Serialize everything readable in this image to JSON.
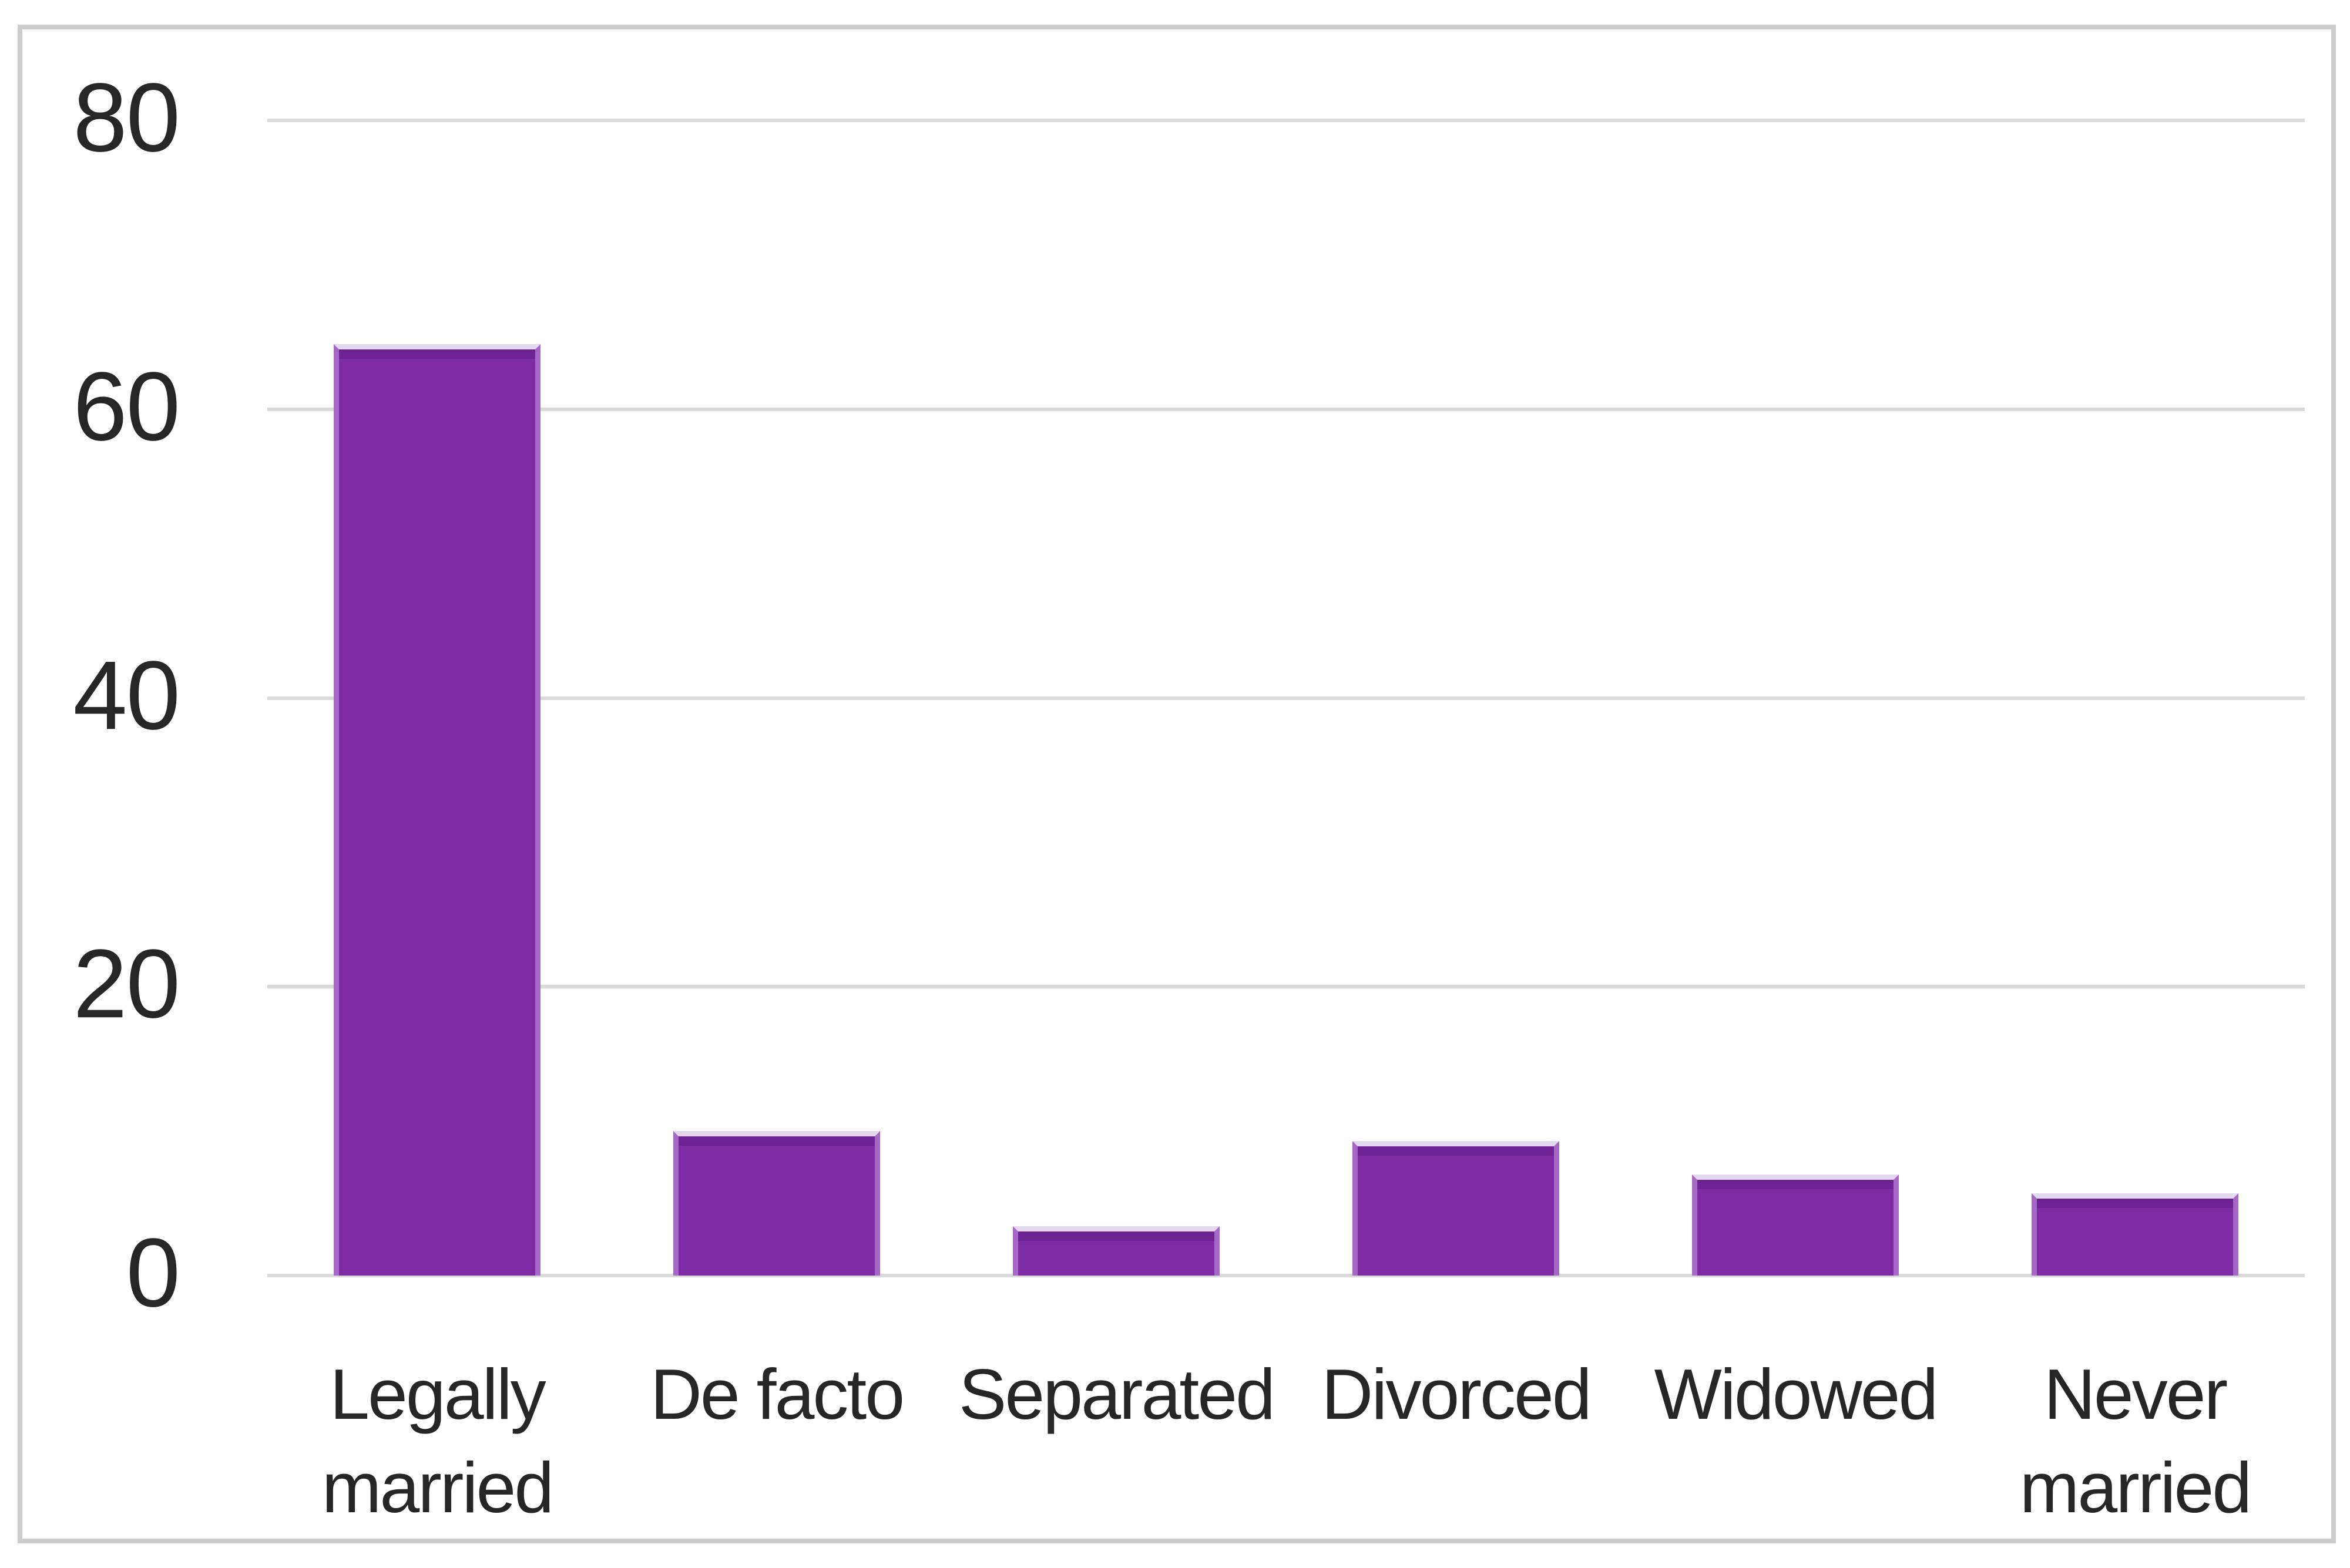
{
  "figure": {
    "background": "#FFFFFF",
    "frame_border_color": "#CDCDCD"
  },
  "chart_data": {
    "type": "bar",
    "categories": [
      "Legally\nmarried",
      "De facto",
      "Separated",
      "Divorced",
      "Widowed",
      "Never\nmarried"
    ],
    "values": [
      64.5,
      10,
      3.4,
      9.3,
      7,
      5.7
    ],
    "title": "",
    "xlabel": "",
    "ylabel": "",
    "ylim": [
      0,
      80
    ],
    "y_ticks": [
      0,
      20,
      40,
      60,
      80
    ],
    "grid": "horizontal-only",
    "legend": "none",
    "bar_color": "#7E2BA5",
    "bar_edge_top_color": "#E2D9EF",
    "bar_edge_side_color": "#A668C5",
    "gridline_color": "#D9D9D9",
    "axis_text_color": "#262626"
  }
}
